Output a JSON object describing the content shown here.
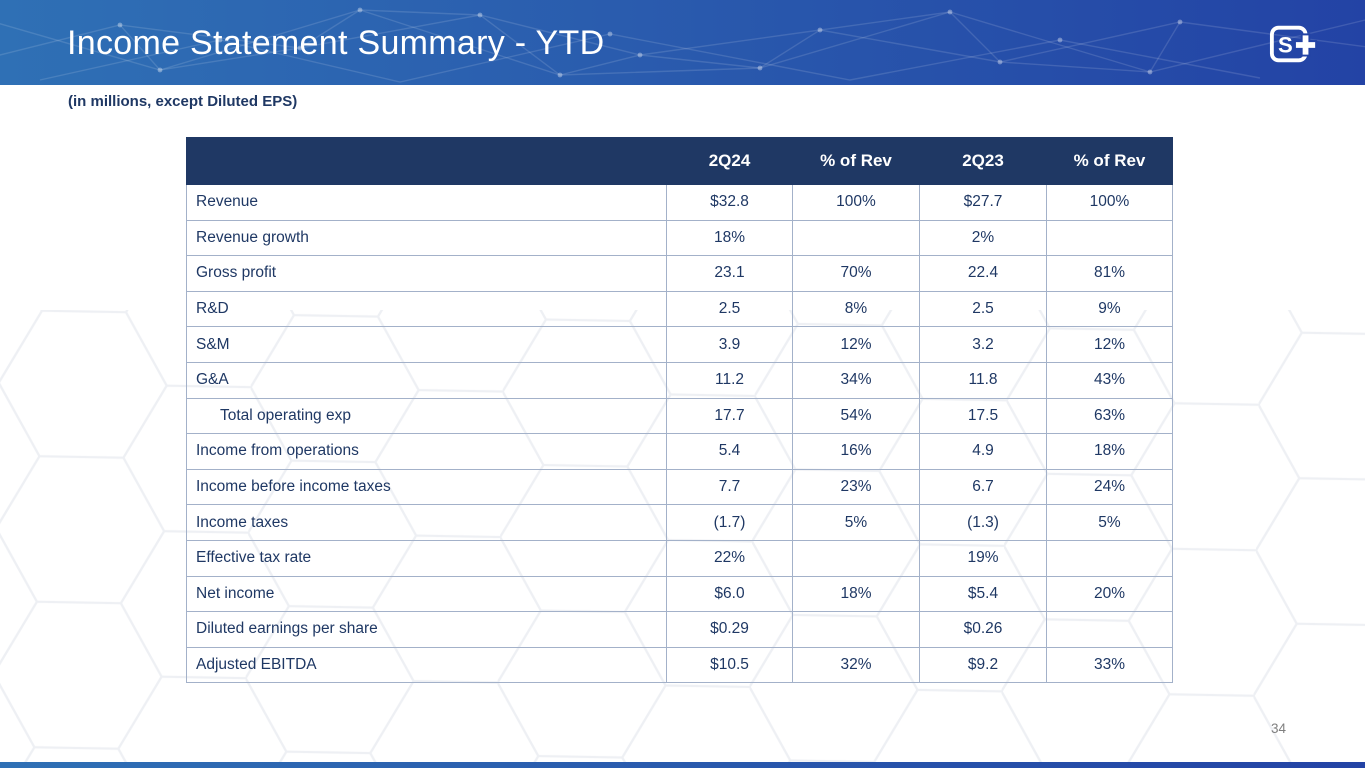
{
  "slide": {
    "title": "Income Statement Summary - YTD",
    "units_note": "(in millions, except Diluted EPS)",
    "page_number": "34",
    "logo": {
      "letter": "S",
      "plus": "+"
    }
  },
  "colors": {
    "header_gradient_left": "#2f70b5",
    "header_gradient_right": "#2343a5",
    "table_header_bg": "#1f3864",
    "table_text": "#1f3864",
    "table_border": "#a3b1c9",
    "page_number_color": "#7f7f7f"
  },
  "table": {
    "columns": [
      "",
      "2Q24",
      "% of Rev",
      "2Q23",
      "% of Rev"
    ],
    "rows": [
      {
        "label": "Revenue",
        "indent": false,
        "values": [
          "$32.8",
          "100%",
          "$27.7",
          "100%"
        ]
      },
      {
        "label": "Revenue growth",
        "indent": false,
        "values": [
          "18%",
          "",
          "2%",
          ""
        ]
      },
      {
        "label": "Gross profit",
        "indent": false,
        "values": [
          "23.1",
          "70%",
          "22.4",
          "81%"
        ]
      },
      {
        "label": "R&D",
        "indent": false,
        "values": [
          "2.5",
          "8%",
          "2.5",
          "9%"
        ]
      },
      {
        "label": "S&M",
        "indent": false,
        "values": [
          "3.9",
          "12%",
          "3.2",
          "12%"
        ]
      },
      {
        "label": "G&A",
        "indent": false,
        "values": [
          "11.2",
          "34%",
          "11.8",
          "43%"
        ]
      },
      {
        "label": "Total operating exp",
        "indent": true,
        "values": [
          "17.7",
          "54%",
          "17.5",
          "63%"
        ]
      },
      {
        "label": "Income from operations",
        "indent": false,
        "values": [
          "5.4",
          "16%",
          "4.9",
          "18%"
        ]
      },
      {
        "label": "Income before income taxes",
        "indent": false,
        "values": [
          "7.7",
          "23%",
          "6.7",
          "24%"
        ]
      },
      {
        "label": "Income taxes",
        "indent": false,
        "values": [
          "(1.7)",
          "5%",
          "(1.3)",
          "5%"
        ]
      },
      {
        "label": "Effective tax rate",
        "indent": false,
        "values": [
          "22%",
          "",
          "19%",
          ""
        ]
      },
      {
        "label": "Net income",
        "indent": false,
        "values": [
          "$6.0",
          "18%",
          "$5.4",
          "20%"
        ]
      },
      {
        "label": "Diluted earnings per share",
        "indent": false,
        "values": [
          "$0.29",
          "",
          "$0.26",
          ""
        ]
      },
      {
        "label": "Adjusted EBITDA",
        "indent": false,
        "values": [
          "$10.5",
          "32%",
          "$9.2",
          "33%"
        ]
      }
    ]
  }
}
